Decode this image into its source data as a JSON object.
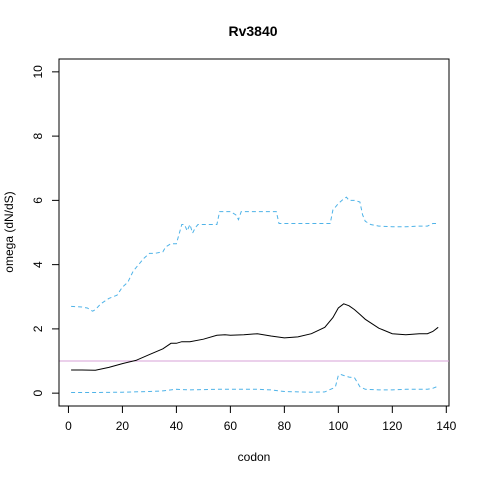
{
  "chart_data": {
    "type": "line",
    "title": "Rv3840",
    "xlabel": "codon",
    "ylabel": "omega (dN/dS)",
    "xlim": [
      -3.5,
      141
    ],
    "ylim": [
      -0.4,
      10.4
    ],
    "xticks": [
      0,
      20,
      40,
      60,
      80,
      100,
      120,
      140
    ],
    "yticks": [
      0,
      2,
      4,
      6,
      8,
      10
    ],
    "grid": false,
    "legend": "none",
    "reference_line": {
      "y": 1,
      "color": "#d7a1d7"
    },
    "series": [
      {
        "role": "estimate",
        "color": "#000000",
        "dash": "solid",
        "x": [
          1,
          5,
          10,
          15,
          20,
          25,
          30,
          35,
          38,
          40,
          42,
          45,
          50,
          55,
          58,
          60,
          65,
          70,
          75,
          80,
          85,
          90,
          95,
          98,
          100,
          102,
          104,
          106,
          108,
          110,
          115,
          120,
          125,
          130,
          133,
          135,
          137
        ],
        "y": [
          0.72,
          0.72,
          0.71,
          0.8,
          0.92,
          1.02,
          1.2,
          1.38,
          1.55,
          1.55,
          1.6,
          1.6,
          1.68,
          1.8,
          1.82,
          1.8,
          1.82,
          1.85,
          1.78,
          1.72,
          1.75,
          1.85,
          2.05,
          2.35,
          2.65,
          2.78,
          2.72,
          2.6,
          2.45,
          2.3,
          2.02,
          1.85,
          1.82,
          1.85,
          1.85,
          1.92,
          2.05
        ]
      },
      {
        "role": "upper bound",
        "color": "#4fb3e8",
        "dash": "dashed",
        "x": [
          1,
          5,
          7,
          9,
          10,
          12,
          15,
          18,
          20,
          22,
          24,
          26,
          28,
          30,
          32,
          35,
          36,
          38,
          40,
          42,
          43,
          44,
          45,
          46,
          47,
          48,
          50,
          55,
          56,
          58,
          60,
          62,
          63,
          64,
          66,
          70,
          75,
          77,
          78,
          80,
          85,
          90,
          95,
          97,
          98,
          100,
          102,
          103,
          104,
          106,
          108,
          109,
          110,
          112,
          115,
          120,
          125,
          130,
          133,
          135,
          137
        ],
        "y": [
          2.7,
          2.68,
          2.65,
          2.55,
          2.6,
          2.78,
          2.95,
          3.05,
          3.3,
          3.45,
          3.8,
          4.0,
          4.2,
          4.35,
          4.35,
          4.4,
          4.55,
          4.65,
          4.65,
          5.25,
          5.25,
          5.05,
          5.25,
          4.98,
          5.15,
          5.25,
          5.25,
          5.25,
          5.65,
          5.65,
          5.65,
          5.55,
          5.4,
          5.65,
          5.65,
          5.65,
          5.65,
          5.65,
          5.28,
          5.28,
          5.28,
          5.28,
          5.28,
          5.28,
          5.7,
          5.9,
          6.05,
          6.1,
          6.0,
          6.0,
          5.95,
          5.55,
          5.35,
          5.25,
          5.2,
          5.18,
          5.18,
          5.2,
          5.2,
          5.28,
          5.28
        ]
      },
      {
        "role": "lower bound",
        "color": "#4fb3e8",
        "dash": "dashed",
        "x": [
          1,
          10,
          20,
          30,
          35,
          38,
          40,
          45,
          50,
          55,
          60,
          65,
          70,
          75,
          80,
          85,
          90,
          95,
          98,
          99,
          100,
          101,
          102,
          104,
          106,
          108,
          110,
          115,
          120,
          125,
          130,
          133,
          135,
          137
        ],
        "y": [
          0.02,
          0.02,
          0.03,
          0.05,
          0.07,
          0.1,
          0.12,
          0.1,
          0.11,
          0.12,
          0.12,
          0.12,
          0.12,
          0.1,
          0.05,
          0.04,
          0.03,
          0.04,
          0.15,
          0.22,
          0.55,
          0.58,
          0.55,
          0.5,
          0.48,
          0.2,
          0.12,
          0.1,
          0.1,
          0.12,
          0.12,
          0.12,
          0.15,
          0.22
        ]
      }
    ]
  }
}
